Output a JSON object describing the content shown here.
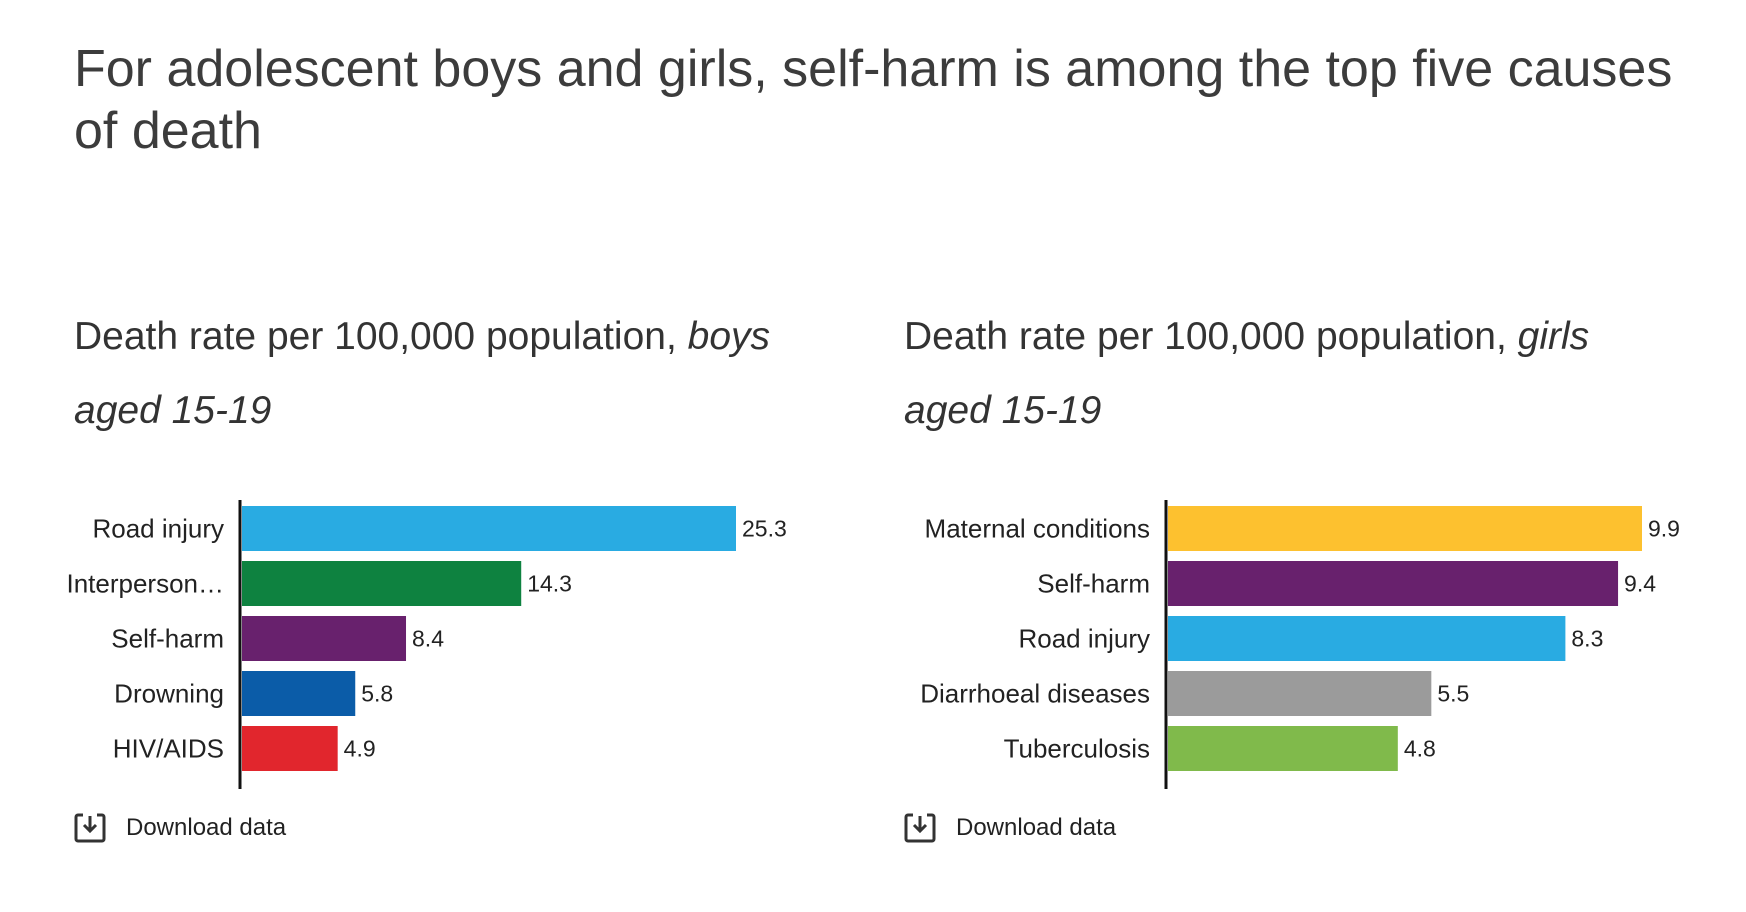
{
  "title": "For adolescent boys and girls, self-harm is among the top five causes of death",
  "download_label": "Download data",
  "chart_data": [
    {
      "type": "bar",
      "orientation": "horizontal",
      "title_main": "Death rate per 100,000 population, ",
      "title_group": "boys",
      "title_age": "aged 15-19",
      "categories": [
        "Road injury",
        "Interperson…",
        "Self-harm",
        "Drowning",
        "HIV/AIDS"
      ],
      "values": [
        25.3,
        14.3,
        8.4,
        5.8,
        4.9
      ],
      "value_labels": [
        "25.3",
        "14.3",
        "8.4",
        "5.8",
        "4.9"
      ],
      "colors": [
        "#29abe2",
        "#0e8240",
        "#68216d",
        "#0b5ca8",
        "#e1262d"
      ],
      "xlim": [
        0,
        25.3
      ],
      "grid": false,
      "legend": "none"
    },
    {
      "type": "bar",
      "orientation": "horizontal",
      "title_main": "Death rate per 100,000 population, ",
      "title_group": "girls",
      "title_age": "aged 15-19",
      "categories": [
        "Maternal conditions",
        "Self-harm",
        "Road injury",
        "Diarrhoeal diseases",
        "Tuberculosis"
      ],
      "values": [
        9.9,
        9.4,
        8.3,
        5.5,
        4.8
      ],
      "value_labels": [
        "9.9",
        "9.4",
        "8.3",
        "5.5",
        "4.8"
      ],
      "colors": [
        "#fdc12f",
        "#68216d",
        "#29abe2",
        "#9b9b9b",
        "#80ba4b"
      ],
      "xlim": [
        0,
        9.9
      ],
      "grid": false,
      "legend": "none"
    }
  ]
}
